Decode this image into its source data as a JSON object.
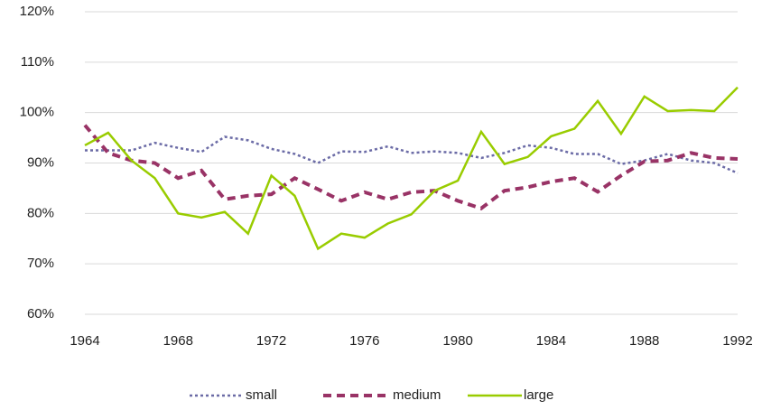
{
  "chart_data": {
    "type": "line",
    "x": [
      1964,
      1965,
      1966,
      1967,
      1968,
      1969,
      1970,
      1971,
      1972,
      1973,
      1974,
      1975,
      1976,
      1977,
      1978,
      1979,
      1980,
      1981,
      1982,
      1983,
      1984,
      1985,
      1986,
      1987,
      1988,
      1989,
      1990,
      1991,
      1992
    ],
    "xlim": [
      1964,
      1992
    ],
    "xticks": [
      1964,
      1968,
      1972,
      1976,
      1980,
      1984,
      1988,
      1992
    ],
    "ylim": [
      60,
      120
    ],
    "yticks": [
      {
        "value": 60,
        "label": "60%"
      },
      {
        "value": 70,
        "label": "70%"
      },
      {
        "value": 80,
        "label": "80%"
      },
      {
        "value": 90,
        "label": "90%"
      },
      {
        "value": 100,
        "label": "100%"
      },
      {
        "value": 110,
        "label": "110%"
      },
      {
        "value": 120,
        "label": "120%"
      }
    ],
    "grid": true,
    "legend": "bottom",
    "series": [
      {
        "name": "small",
        "color": "#6b6ba6",
        "line_style": "dot",
        "values": [
          92.5,
          92.5,
          92.5,
          94,
          93,
          92.2,
          95.2,
          94.5,
          92.8,
          91.8,
          90,
          92.3,
          92.2,
          93.3,
          92,
          92.3,
          92,
          91,
          92,
          93.5,
          93,
          91.8,
          91.8,
          89.8,
          90.5,
          91.8,
          90.5,
          90,
          88
        ]
      },
      {
        "name": "medium",
        "color": "#993366",
        "line_style": "dash",
        "values": [
          97.5,
          92,
          90.5,
          90,
          87,
          88.5,
          82.8,
          83.5,
          83.8,
          87,
          84.8,
          82.5,
          84.2,
          82.8,
          84.2,
          84.5,
          82.5,
          81,
          84.5,
          85.2,
          86.3,
          87,
          84.3,
          87.5,
          90.3,
          90.5,
          92,
          91,
          90.8
        ]
      },
      {
        "name": "large",
        "color": "#99cc00",
        "line_style": "solid",
        "values": [
          93.5,
          96,
          90.5,
          87,
          80,
          79.2,
          80.3,
          76,
          87.5,
          83.5,
          73,
          76,
          75.2,
          78,
          79.8,
          84.5,
          86.5,
          96.2,
          89.8,
          91.2,
          95.3,
          96.8,
          102.3,
          95.8,
          103.2,
          100.3,
          100.5,
          100.3,
          105
        ]
      }
    ]
  }
}
